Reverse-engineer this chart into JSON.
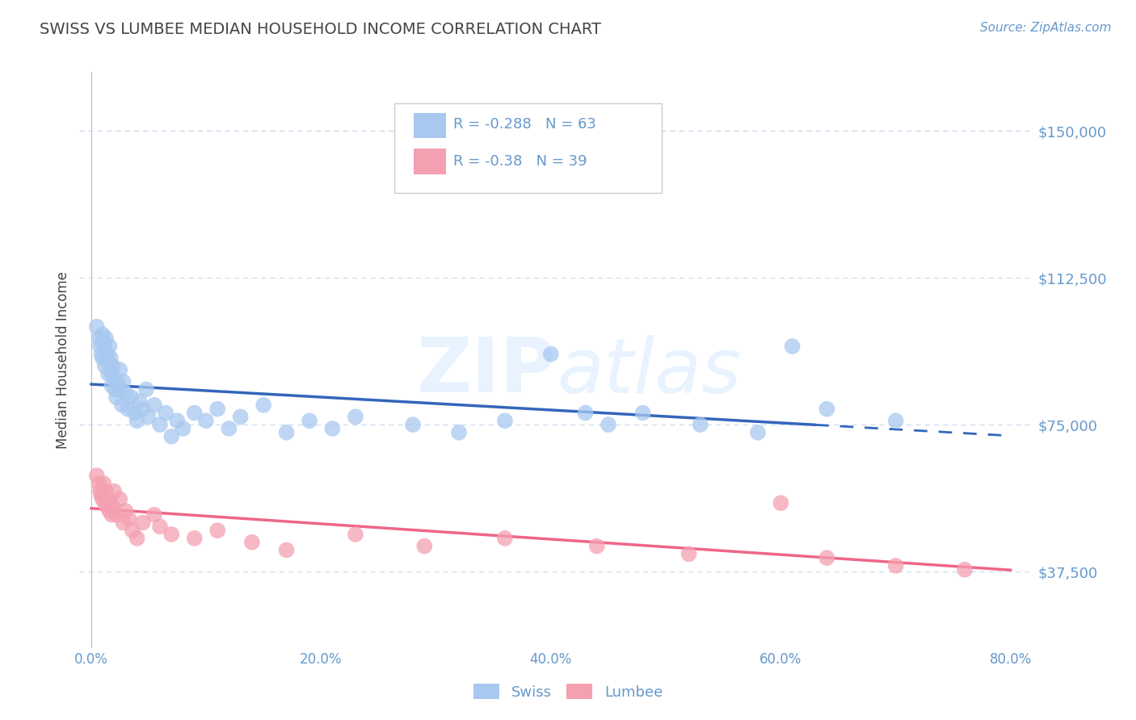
{
  "title": "SWISS VS LUMBEE MEDIAN HOUSEHOLD INCOME CORRELATION CHART",
  "source_text": "Source: ZipAtlas.com",
  "ylabel": "Median Household Income",
  "xlim": [
    -0.01,
    0.82
  ],
  "ylim": [
    18000,
    165000
  ],
  "yticks": [
    37500,
    75000,
    112500,
    150000
  ],
  "ytick_labels": [
    "$37,500",
    "$75,000",
    "$112,500",
    "$150,000"
  ],
  "xtick_labels": [
    "0.0%",
    "",
    "20.0%",
    "",
    "40.0%",
    "",
    "60.0%",
    "",
    "80.0%"
  ],
  "xticks": [
    0.0,
    0.1,
    0.2,
    0.3,
    0.4,
    0.5,
    0.6,
    0.7,
    0.8
  ],
  "watermark_zip": "ZIP",
  "watermark_atlas": "atlas",
  "legend_swiss_label": "Swiss",
  "legend_lumbee_label": "Lumbee",
  "swiss_R": -0.288,
  "swiss_N": 63,
  "lumbee_R": -0.38,
  "lumbee_N": 39,
  "blue_scatter_color": "#A8C8F0",
  "pink_scatter_color": "#F4A0B0",
  "blue_line_color": "#3366BB",
  "pink_line_color": "#EE6688",
  "axis_color": "#6699CC",
  "grid_color": "#CCDDEE",
  "title_color": "#444444",
  "swiss_x": [
    0.005,
    0.007,
    0.008,
    0.009,
    0.01,
    0.01,
    0.011,
    0.012,
    0.012,
    0.013,
    0.014,
    0.015,
    0.015,
    0.016,
    0.017,
    0.018,
    0.018,
    0.019,
    0.02,
    0.021,
    0.022,
    0.023,
    0.025,
    0.025,
    0.027,
    0.028,
    0.03,
    0.032,
    0.035,
    0.038,
    0.04,
    0.042,
    0.045,
    0.048,
    0.05,
    0.055,
    0.06,
    0.065,
    0.07,
    0.075,
    0.08,
    0.09,
    0.1,
    0.11,
    0.12,
    0.13,
    0.15,
    0.17,
    0.19,
    0.21,
    0.23,
    0.28,
    0.32,
    0.36,
    0.4,
    0.43,
    0.45,
    0.48,
    0.53,
    0.58,
    0.61,
    0.64,
    0.7
  ],
  "swiss_y": [
    100000,
    97000,
    95000,
    93000,
    92000,
    98000,
    96000,
    94000,
    90000,
    97000,
    93000,
    91000,
    88000,
    95000,
    92000,
    88000,
    85000,
    90000,
    87000,
    84000,
    82000,
    86000,
    89000,
    84000,
    80000,
    86000,
    83000,
    79000,
    82000,
    78000,
    76000,
    81000,
    79000,
    84000,
    77000,
    80000,
    75000,
    78000,
    72000,
    76000,
    74000,
    78000,
    76000,
    79000,
    74000,
    77000,
    80000,
    73000,
    76000,
    74000,
    77000,
    75000,
    73000,
    76000,
    93000,
    78000,
    75000,
    78000,
    75000,
    73000,
    95000,
    79000,
    76000
  ],
  "lumbee_x": [
    0.005,
    0.007,
    0.008,
    0.009,
    0.01,
    0.011,
    0.012,
    0.013,
    0.014,
    0.015,
    0.016,
    0.017,
    0.018,
    0.019,
    0.02,
    0.022,
    0.025,
    0.028,
    0.03,
    0.033,
    0.036,
    0.04,
    0.045,
    0.055,
    0.06,
    0.07,
    0.09,
    0.11,
    0.14,
    0.17,
    0.23,
    0.29,
    0.36,
    0.44,
    0.52,
    0.6,
    0.64,
    0.7,
    0.76
  ],
  "lumbee_y": [
    62000,
    60000,
    58000,
    57000,
    56000,
    60000,
    55000,
    58000,
    54000,
    56000,
    53000,
    55000,
    52000,
    54000,
    58000,
    52000,
    56000,
    50000,
    53000,
    51000,
    48000,
    46000,
    50000,
    52000,
    49000,
    47000,
    46000,
    48000,
    45000,
    43000,
    47000,
    44000,
    46000,
    44000,
    42000,
    55000,
    41000,
    39000,
    38000
  ]
}
